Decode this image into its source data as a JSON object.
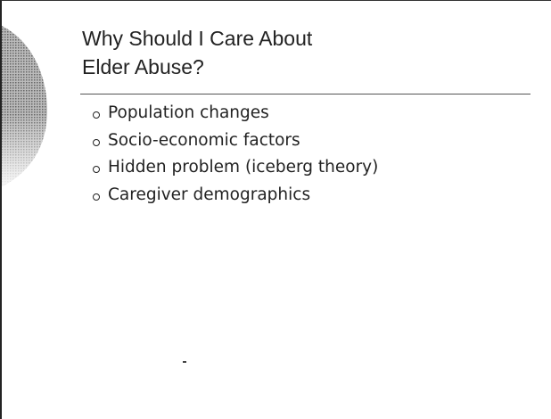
{
  "slide": {
    "title_lines": [
      "Why Should I Care About",
      "Elder Abuse?"
    ],
    "bullets": [
      "Population changes",
      "Socio-economic factors",
      "Hidden problem (iceberg theory)",
      "Caregiver demographics"
    ]
  }
}
